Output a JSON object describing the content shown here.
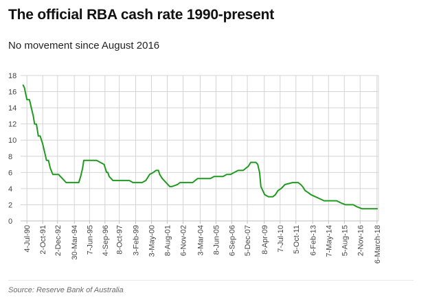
{
  "header": {
    "title": "The official RBA cash rate 1990-present",
    "subtitle": "No movement since August 2016"
  },
  "footer": {
    "source": "Source: Reserve Bank of Australia"
  },
  "colors": {
    "line": "#1f9a1f",
    "grid": "#d4d4d4",
    "axis": "#bfbfbf"
  },
  "chart_data": {
    "type": "line",
    "title": "The official RBA cash rate 1990-present",
    "subtitle": "No movement since August 2016",
    "xlabel": "",
    "ylabel": "",
    "ylim": [
      0,
      18
    ],
    "yticks": [
      0,
      2,
      4,
      6,
      8,
      10,
      12,
      14,
      16,
      18
    ],
    "grid": true,
    "legend": "none",
    "xlim": [
      1990.0,
      2018.3
    ],
    "xticks": [
      {
        "x": 1990.5,
        "label": "4-Jul-90"
      },
      {
        "x": 1991.75,
        "label": "2-Oct-91"
      },
      {
        "x": 1992.92,
        "label": "2-Dec-92"
      },
      {
        "x": 1994.25,
        "label": "30-Mar-94"
      },
      {
        "x": 1995.45,
        "label": "7-Jun-95"
      },
      {
        "x": 1996.67,
        "label": "4-Sep-96"
      },
      {
        "x": 1997.8,
        "label": "8-Oct-97"
      },
      {
        "x": 1999.1,
        "label": "3-Feb-99"
      },
      {
        "x": 2000.35,
        "label": "3-May-00"
      },
      {
        "x": 2001.6,
        "label": "8-Aug-01"
      },
      {
        "x": 2002.85,
        "label": "6-Nov-02"
      },
      {
        "x": 2004.2,
        "label": "3-Mar-04"
      },
      {
        "x": 2005.45,
        "label": "8-Jun-05"
      },
      {
        "x": 2006.7,
        "label": "6-Sep-06"
      },
      {
        "x": 2007.93,
        "label": "5-Dec-07"
      },
      {
        "x": 2009.27,
        "label": "8-Apr-09"
      },
      {
        "x": 2010.52,
        "label": "7-Jul-10"
      },
      {
        "x": 2011.77,
        "label": "5-Oct-11"
      },
      {
        "x": 2013.1,
        "label": "6-Feb-13"
      },
      {
        "x": 2014.35,
        "label": "7-May-14"
      },
      {
        "x": 2015.6,
        "label": "5-Aug-15"
      },
      {
        "x": 2016.85,
        "label": "2-Nov-16"
      },
      {
        "x": 2018.18,
        "label": "6-March-18"
      }
    ],
    "series": [
      {
        "color": "#1f9a1f",
        "x": [
          1990.2,
          1990.3,
          1990.5,
          1990.7,
          1990.85,
          1991.0,
          1991.1,
          1991.25,
          1991.4,
          1991.55,
          1991.75,
          1991.9,
          1992.05,
          1992.2,
          1992.35,
          1992.55,
          1992.75,
          1993.0,
          1993.3,
          1993.6,
          1994.1,
          1994.6,
          1994.75,
          1994.9,
          1995.0,
          1995.6,
          1996.0,
          1996.6,
          1996.8,
          1996.9,
          1997.0,
          1997.3,
          1997.6,
          1997.8,
          1998.0,
          1998.6,
          1998.9,
          1999.1,
          1999.6,
          1999.9,
          2000.0,
          2000.2,
          2000.5,
          2000.7,
          2000.9,
          2001.0,
          2001.2,
          2001.5,
          2001.8,
          2001.95,
          2002.4,
          2002.6,
          2002.8,
          2003.2,
          2003.6,
          2004.0,
          2004.2,
          2004.6,
          2005.0,
          2005.3,
          2005.6,
          2006.0,
          2006.3,
          2006.6,
          2006.9,
          2007.2,
          2007.6,
          2007.8,
          2008.0,
          2008.2,
          2008.4,
          2008.6,
          2008.75,
          2008.9,
          2009.0,
          2009.3,
          2009.6,
          2009.8,
          2009.95,
          2010.15,
          2010.35,
          2010.6,
          2010.9,
          2011.5,
          2011.85,
          2011.95,
          2012.15,
          2012.3,
          2012.5,
          2012.75,
          2012.95,
          2013.3,
          2013.65,
          2014.0,
          2014.6,
          2015.0,
          2015.3,
          2015.7,
          2016.3,
          2016.6,
          2017.0,
          2018.2
        ],
        "y": [
          16.8,
          16.5,
          15.0,
          15.0,
          14.0,
          13.0,
          12.0,
          12.0,
          10.5,
          10.5,
          9.5,
          8.5,
          7.5,
          7.5,
          6.5,
          5.75,
          5.75,
          5.75,
          5.25,
          4.75,
          4.75,
          4.75,
          5.5,
          6.5,
          7.5,
          7.5,
          7.5,
          7.0,
          6.0,
          6.0,
          5.5,
          5.0,
          5.0,
          5.0,
          5.0,
          5.0,
          4.75,
          4.75,
          4.75,
          5.0,
          5.25,
          5.75,
          6.0,
          6.25,
          6.25,
          5.75,
          5.25,
          4.75,
          4.25,
          4.25,
          4.5,
          4.75,
          4.75,
          4.75,
          4.75,
          5.25,
          5.25,
          5.25,
          5.25,
          5.5,
          5.5,
          5.5,
          5.75,
          5.75,
          6.0,
          6.25,
          6.25,
          6.5,
          6.75,
          7.25,
          7.25,
          7.25,
          7.0,
          6.0,
          4.25,
          3.25,
          3.0,
          3.0,
          3.0,
          3.25,
          3.75,
          4.0,
          4.5,
          4.75,
          4.75,
          4.75,
          4.5,
          4.25,
          3.75,
          3.5,
          3.25,
          3.0,
          2.75,
          2.5,
          2.5,
          2.5,
          2.25,
          2.0,
          2.0,
          1.75,
          1.5,
          1.5
        ]
      }
    ]
  }
}
